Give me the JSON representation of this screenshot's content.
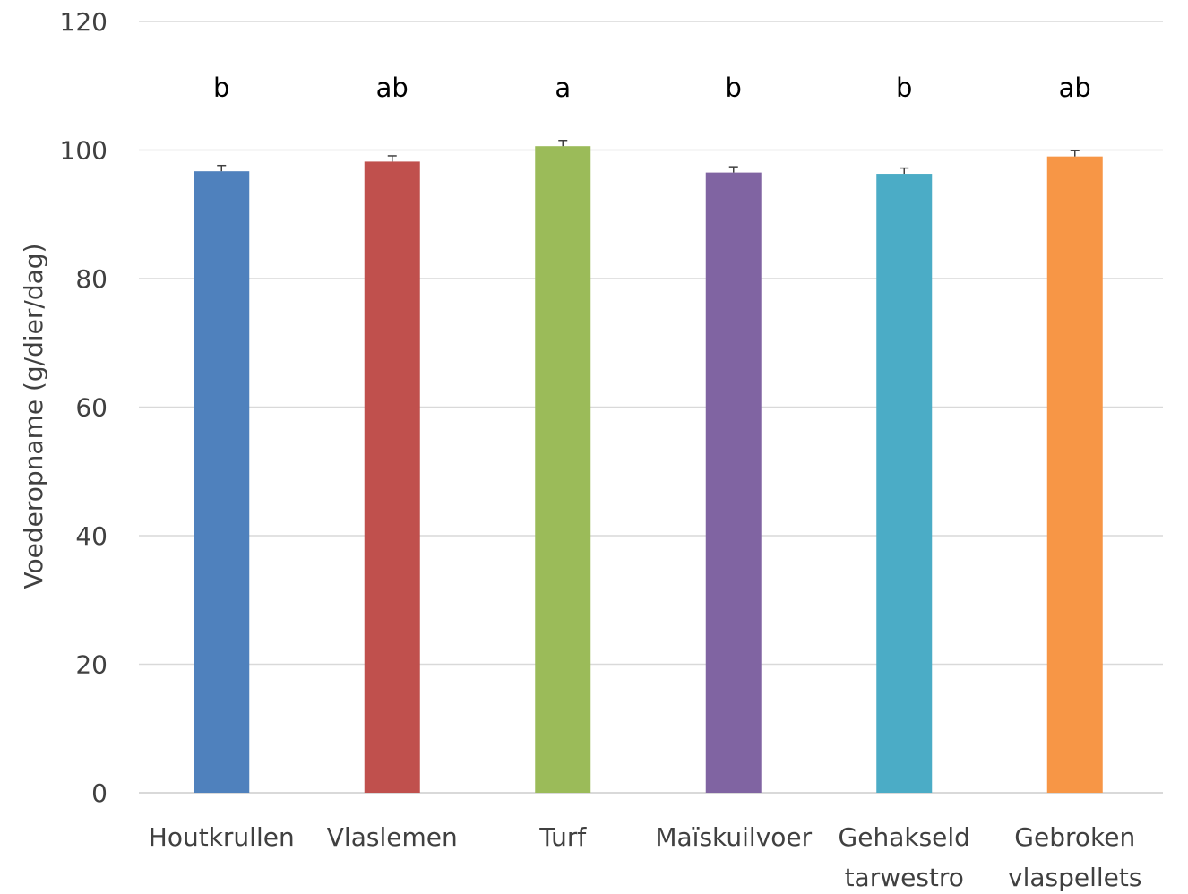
{
  "chart_data": {
    "type": "bar",
    "title": "",
    "xlabel": "",
    "ylabel": "Voederopname (g/dier/dag)",
    "ylim": [
      0,
      120
    ],
    "yticks": [
      0,
      20,
      40,
      60,
      80,
      100,
      120
    ],
    "grid": true,
    "legend": "none",
    "categories": [
      [
        "Houtkrullen"
      ],
      [
        "Vlaslemen"
      ],
      [
        "Turf"
      ],
      [
        "Maïskuilvoer"
      ],
      [
        "Gehakseld",
        "tarwestro"
      ],
      [
        "Gebroken",
        "vlaspellets"
      ]
    ],
    "values": [
      96.7,
      98.2,
      100.6,
      96.5,
      96.3,
      99.0
    ],
    "errors": [
      0.9,
      0.9,
      0.9,
      0.9,
      0.9,
      0.9
    ],
    "significance_labels": [
      "b",
      "ab",
      "a",
      "b",
      "b",
      "ab"
    ],
    "colors": [
      "#4F81BD",
      "#C0504D",
      "#9BBB59",
      "#8064A2",
      "#4BACC6",
      "#F79646"
    ],
    "gridline_color": "#D9D9D9"
  }
}
